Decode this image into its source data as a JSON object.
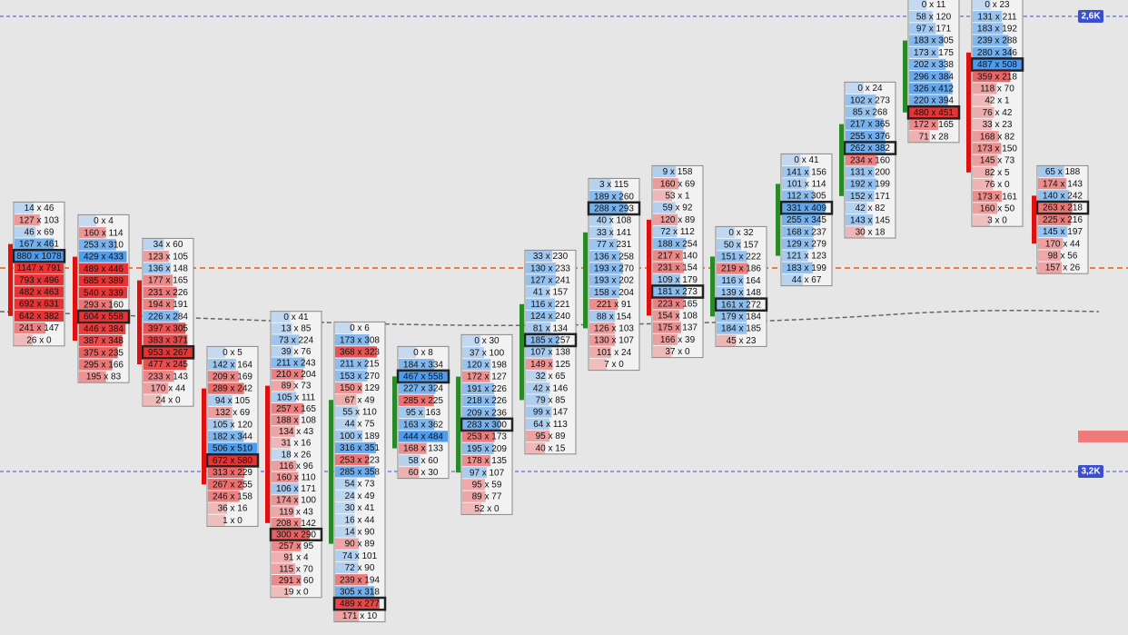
{
  "price_labels": [
    "2,6K",
    "3,2K"
  ],
  "columns": [
    {
      "poc": 4,
      "cells": [
        "14 x 46",
        "127 x 103",
        "46 x 69",
        "167 x 461",
        "880 x 1078",
        "1147 x 791",
        "793 x 496",
        "482 x 463",
        "692 x 631",
        "642 x 382",
        "241 x 147",
        "26 x 0"
      ]
    },
    {
      "poc": 8,
      "cells": [
        "0 x 4",
        "160 x 114",
        "253 x 310",
        "429 x 433",
        "489 x 446",
        "685 x 389",
        "540 x 339",
        "293 x 160",
        "604 x 558",
        "446 x 384",
        "387 x 348",
        "375 x 235",
        "295 x 166",
        "195 x 83"
      ]
    },
    {
      "poc": 9,
      "cells": [
        "34 x 60",
        "123 x 105",
        "136 x 148",
        "177 x 165",
        "231 x 226",
        "194 x 191",
        "226 x 284",
        "397 x 305",
        "383 x 371",
        "953 x 267",
        "477 x 245",
        "233 x 143",
        "170 x 44",
        "24 x 0"
      ]
    },
    {
      "poc": 9,
      "cells": [
        "0 x 5",
        "142 x 164",
        "209 x 169",
        "289 x 242",
        "94 x 105",
        "132 x 69",
        "105 x 120",
        "182 x 344",
        "506 x 510",
        "672 x 580",
        "313 x 229",
        "267 x 255",
        "246 x 158",
        "36 x 16",
        "1 x 0"
      ]
    },
    {
      "poc": 19,
      "cells": [
        "0 x 41",
        "13 x 85",
        "73 x 224",
        "39 x 76",
        "211 x 243",
        "210 x 204",
        "89 x 73",
        "105 x 111",
        "257 x 165",
        "188 x 108",
        "134 x 43",
        "31 x 16",
        "18 x 26",
        "116 x 96",
        "160 x 110",
        "106 x 171",
        "174 x 100",
        "119 x 43",
        "208 x 142",
        "300 x 290",
        "257 x 95",
        "91 x 4",
        "115 x 70",
        "291 x 60",
        "19 x 0"
      ]
    },
    {
      "poc": 23,
      "cells": [
        "0 x 6",
        "173 x 308",
        "368 x 323",
        "211 x 215",
        "153 x 270",
        "150 x 129",
        "67 x 49",
        "55 x 110",
        "44 x 75",
        "100 x 189",
        "316 x 351",
        "253 x 223",
        "285 x 358",
        "54 x 73",
        "24 x 49",
        "30 x 41",
        "16 x 44",
        "14 x 90",
        "90 x 89",
        "74 x 101",
        "72 x 90",
        "239 x 194",
        "305 x 318",
        "489 x 277",
        "171 x 10"
      ]
    },
    {
      "poc": 2,
      "cells": [
        "0 x 8",
        "184 x 334",
        "467 x 558",
        "227 x 324",
        "285 x 225",
        "95 x 163",
        "163 x 362",
        "444 x 484",
        "168 x 133",
        "58 x 60",
        "60 x 30"
      ]
    },
    {
      "poc": 7,
      "cells": [
        "0 x 30",
        "37 x 100",
        "120 x 198",
        "172 x 127",
        "191 x 226",
        "218 x 226",
        "209 x 236",
        "283 x 300",
        "253 x 173",
        "195 x 209",
        "178 x 135",
        "97 x 107",
        "95 x 59",
        "89 x 77",
        "52 x 0"
      ]
    },
    {
      "poc": 7,
      "cells": [
        "33 x 230",
        "130 x 233",
        "127 x 241",
        "41 x 157",
        "116 x 221",
        "124 x 240",
        "81 x 134",
        "185 x 257",
        "107 x 138",
        "149 x 125",
        "32 x 65",
        "42 x 146",
        "79 x 85",
        "99 x 147",
        "64 x 113",
        "95 x 89",
        "40 x 15"
      ]
    },
    {
      "poc": 2,
      "cells": [
        "3 x 115",
        "189 x 260",
        "288 x 293",
        "40 x 108",
        "33 x 141",
        "77 x 231",
        "136 x 258",
        "193 x 270",
        "193 x 202",
        "158 x 204",
        "221 x 91",
        "88 x 154",
        "126 x 103",
        "130 x 107",
        "101 x 24",
        "7 x 0"
      ]
    },
    {
      "poc": 10,
      "cells": [
        "9 x 158",
        "160 x 69",
        "53 x 1",
        "59 x 92",
        "120 x 89",
        "72 x 112",
        "188 x 254",
        "217 x 140",
        "231 x 154",
        "109 x 179",
        "181 x 273",
        "223 x 165",
        "154 x 108",
        "175 x 137",
        "166 x 39",
        "37 x 0"
      ]
    },
    {
      "poc": 6,
      "cells": [
        "0 x 32",
        "50 x 157",
        "151 x 222",
        "219 x 186",
        "116 x 164",
        "139 x 148",
        "161 x 272",
        "179 x 184",
        "184 x 185",
        "45 x 23"
      ]
    },
    {
      "poc": 4,
      "cells": [
        "0 x 41",
        "141 x 156",
        "101 x 114",
        "112 x 305",
        "331 x 409",
        "255 x 345",
        "168 x 237",
        "129 x 279",
        "121 x 123",
        "183 x 199",
        "44 x 67"
      ]
    },
    {
      "poc": 5,
      "cells": [
        "0 x 24",
        "102 x 273",
        "85 x 268",
        "217 x 365",
        "255 x 376",
        "262 x 382",
        "234 x 160",
        "131 x 200",
        "192 x 199",
        "152 x 171",
        "42 x 82",
        "143 x 145",
        "30 x 18"
      ]
    },
    {
      "poc": 9,
      "cells": [
        "0 x 11",
        "58 x 120",
        "97 x 171",
        "183 x 305",
        "173 x 175",
        "202 x 338",
        "296 x 384",
        "326 x 412",
        "220 x 394",
        "480 x 451",
        "172 x 165",
        "71 x 28"
      ]
    },
    {
      "poc": 5,
      "cells": [
        "0 x 23",
        "131 x 211",
        "183 x 192",
        "239 x 288",
        "280 x 346",
        "487 x 508",
        "359 x 218",
        "118 x 70",
        "42 x 1",
        "76 x 42",
        "33 x 23",
        "168 x 82",
        "173 x 150",
        "145 x 73",
        "82 x 5",
        "76 x 0",
        "173 x 161",
        "160 x 50",
        "3 x 0"
      ]
    },
    {
      "poc": 3,
      "cells": [
        "65 x 188",
        "174 x 143",
        "140 x 242",
        "263 x 218",
        "225 x 216",
        "145 x 197",
        "170 x 44",
        "98 x 56",
        "157 x 26"
      ]
    }
  ]
}
